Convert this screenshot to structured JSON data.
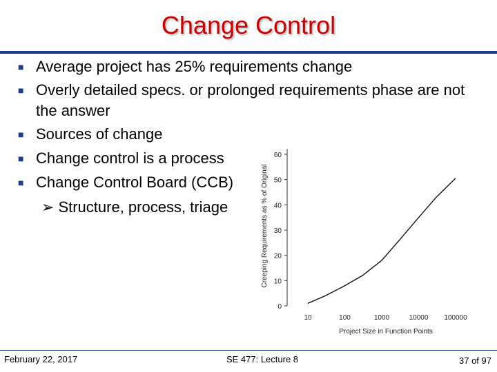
{
  "title": "Change Control",
  "bullets": [
    "Average project has 25% requirements change",
    "Overly detailed specs. or prolonged requirements phase are not the answer",
    "Sources of change",
    "Change control is a process",
    "Change Control Board (CCB)"
  ],
  "sub_bullet": "Structure, process, triage",
  "colors": {
    "title": "#cc0000",
    "rule": "#1f3b8c",
    "bullet": "#1f3b8c"
  },
  "chart_data": {
    "type": "line",
    "xlabel": "Project Size in Function Points",
    "ylabel": "Creeping Requirements as % of Original",
    "x_scale": "log",
    "x_ticks": [
      "10",
      "100",
      "1000",
      "10000",
      "100000"
    ],
    "y_ticks": [
      "0",
      "10",
      "20",
      "30",
      "40",
      "50",
      "60"
    ],
    "ylim": [
      0,
      60
    ],
    "xlim": [
      10,
      100000
    ],
    "grid": false,
    "series": [
      {
        "x": [
          10,
          30,
          100,
          300,
          1000,
          3000,
          10000,
          30000,
          100000
        ],
        "y": [
          1,
          4,
          8,
          12,
          18,
          26,
          35,
          43,
          50.5
        ]
      }
    ]
  },
  "footer": {
    "date": "February 22, 2017",
    "course": "SE 477: Lecture 8",
    "page": "37 of 97"
  }
}
